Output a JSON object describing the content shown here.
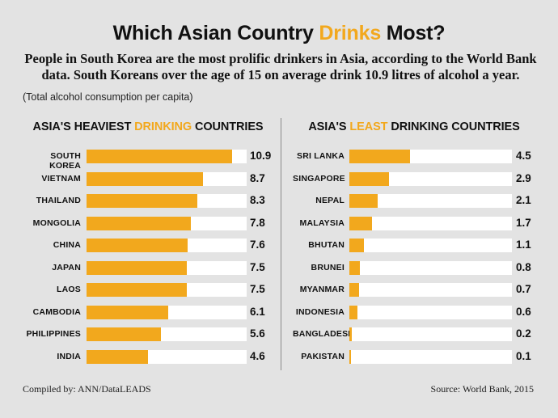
{
  "chart_data": [
    {
      "type": "bar",
      "orientation": "horizontal",
      "title_pre": "ASIA'S HEAVIEST ",
      "title_highlight": "DRINKING",
      "title_post": " COUNTRIES",
      "categories": [
        "SOUTH KOREA",
        "VIETNAM",
        "THAILAND",
        "MONGOLIA",
        "CHINA",
        "JAPAN",
        "LAOS",
        "CAMBODIA",
        "PHILIPPINES",
        "INDIA"
      ],
      "values": [
        10.9,
        8.7,
        8.3,
        7.8,
        7.6,
        7.5,
        7.5,
        6.1,
        5.6,
        4.6
      ],
      "value_labels": [
        "10.9",
        "8.7",
        "8.3",
        "7.8",
        "7.6",
        "7.5",
        "7.5",
        "6.1",
        "5.6",
        "4.6"
      ],
      "xlim": [
        0,
        12
      ],
      "bar_color": "#f2a81d",
      "track_color": "#ffffff"
    },
    {
      "type": "bar",
      "orientation": "horizontal",
      "title_pre": "ASIA'S ",
      "title_highlight": "LEAST",
      "title_post": " DRINKING COUNTRIES",
      "categories": [
        "SRI LANKA",
        "SINGAPORE",
        "NEPAL",
        "MALAYSIA",
        "BHUTAN",
        "BRUNEI",
        "MYANMAR",
        "INDONESIA",
        "BANGLADESH",
        "PAKISTAN"
      ],
      "values": [
        4.5,
        2.9,
        2.1,
        1.7,
        1.1,
        0.8,
        0.7,
        0.6,
        0.2,
        0.1
      ],
      "value_labels": [
        "4.5",
        "2.9",
        "2.1",
        "1.7",
        "1.1",
        "0.8",
        "0.7",
        "0.6",
        "0.2",
        "0.1"
      ],
      "xlim": [
        0,
        12
      ],
      "bar_color": "#f2a81d",
      "track_color": "#ffffff"
    }
  ],
  "header": {
    "title_pre": "Which Asian Country ",
    "title_highlight": "Drinks",
    "title_post": " Most?",
    "subtitle": "People in South Korea are the most prolific drinkers in Asia, according to the World Bank data. South Koreans over the age of 15 on average drink 10.9 litres of alcohol a year.",
    "note": "(Total alcohol consumption per capita)"
  },
  "footer": {
    "compiled_by": "Compiled by: ANN/DataLEADS",
    "source": "Source: World Bank, 2015"
  },
  "colors": {
    "accent": "#f2a81d",
    "background": "#e3e3e3"
  }
}
